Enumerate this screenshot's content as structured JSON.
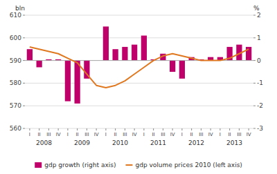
{
  "chart_data": {
    "type": "bar",
    "categories": [
      "I",
      "II",
      "III",
      "IV",
      "I",
      "II",
      "III",
      "IV",
      "I",
      "II",
      "III",
      "IV",
      "I",
      "II",
      "III",
      "IV",
      "I",
      "II",
      "III",
      "IV",
      "I",
      "II",
      "III",
      "IV"
    ],
    "annotations": [
      "2008",
      "2009",
      "2010",
      "2011",
      "2012",
      "2013"
    ],
    "ylabel": "bln",
    "y2label": "%",
    "series": [
      {
        "name": "gdp growth (right axis)",
        "type": "bar",
        "color": "#c0006a",
        "axis": "y2",
        "values": [
          0.5,
          -0.3,
          0.05,
          0.05,
          -1.8,
          -1.9,
          -0.8,
          0.0,
          1.5,
          0.5,
          0.6,
          0.7,
          1.1,
          0.05,
          0.3,
          -0.5,
          -0.8,
          0.15,
          0.05,
          0.15,
          0.15,
          0.6,
          0.7,
          0.6
        ]
      },
      {
        "name": "gdp volume prices 2010 (left axis)",
        "type": "line",
        "color": "#e07820",
        "values": [
          596,
          595,
          594,
          593,
          591,
          589,
          584,
          579,
          578,
          579,
          581,
          584,
          587,
          590,
          592,
          593,
          592,
          591,
          590,
          590,
          590,
          591,
          593,
          595
        ]
      }
    ],
    "ylim": [
      560,
      610
    ],
    "yticks": [
      560,
      570,
      580,
      590,
      600,
      610
    ],
    "y2lim": [
      -3,
      2
    ],
    "y2ticks": [
      -3,
      -2,
      -1,
      0,
      1,
      2
    ],
    "grid": true,
    "legend": "bottom"
  }
}
